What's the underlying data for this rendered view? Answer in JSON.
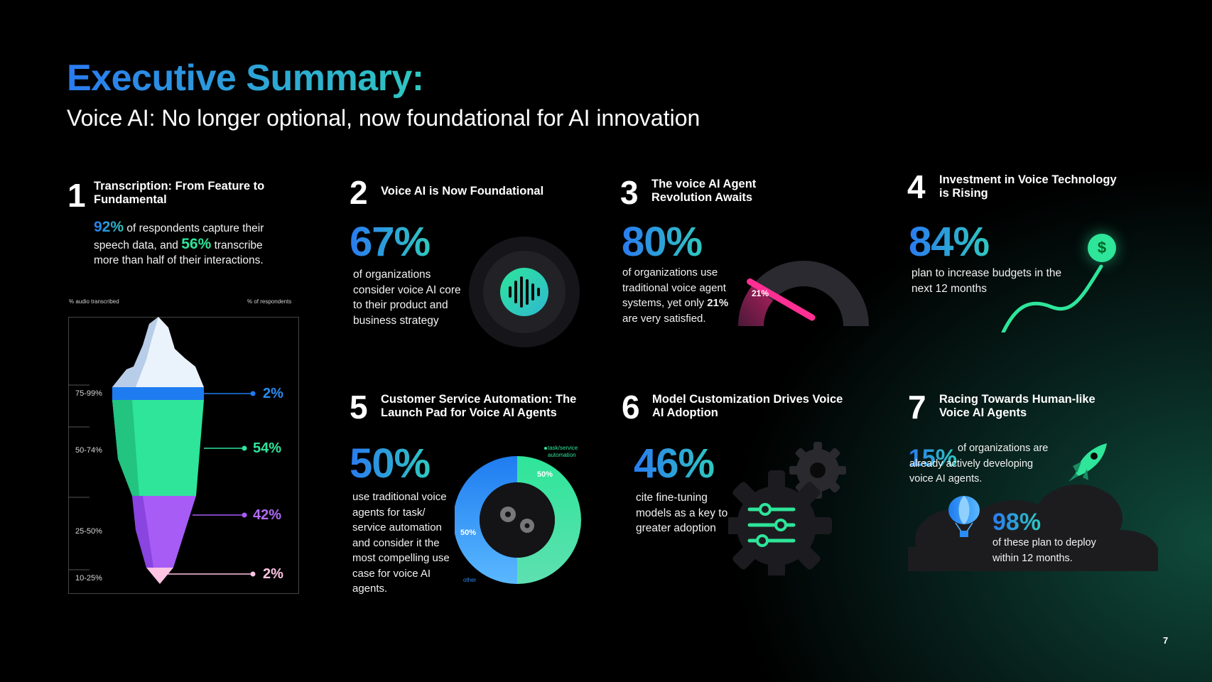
{
  "header": {
    "title": "Executive Summary:",
    "subtitle": "Voice AI: No longer optional, now foundational for AI innovation"
  },
  "colors": {
    "blue": "#2a7bf0",
    "teal": "#2fc8c0",
    "green": "#2ee59a",
    "purple": "#b06cf5",
    "pink": "#ff2f93"
  },
  "sections": [
    {
      "number": "1",
      "heading": "Transcription: From Feature to Fundamental",
      "stat1": "92%",
      "text1": "of respondents capture their speech data, and",
      "stat2": "56%",
      "text2": "transcribe more than half of their interactions."
    },
    {
      "number": "2",
      "heading": "Voice AI is Now Foundational",
      "stat": "67%",
      "text": "of organizations consider voice AI core to their product and business strategy",
      "icon": "sound-wave-icon"
    },
    {
      "number": "3",
      "heading": "The voice AI Agent Revolution Awaits",
      "stat": "80%",
      "text_before": "of organizations use traditional voice agent systems, yet only",
      "highlight": "21%",
      "text_after": "are very satisfied."
    },
    {
      "number": "4",
      "heading": "Investment in Voice Technology is Rising",
      "stat": "84%",
      "text": "plan to increase budgets in the next 12 months",
      "icon_label": "$"
    },
    {
      "number": "5",
      "heading": "Customer Service Automation: The Launch Pad for Voice AI Agents",
      "stat": "50%",
      "text": "use traditional voice agents for task/ service automation and consider it the most compelling use case for voice AI agents."
    },
    {
      "number": "6",
      "heading": "Model Customization Drives Voice AI Adoption",
      "stat": "46%",
      "text": "cite fine-tuning models as a key to greater adoption",
      "icon": "gear-sliders-icon"
    },
    {
      "number": "7",
      "heading": "Racing Towards Human-like Voice AI Agents",
      "stat1": "15%",
      "text1": "of organizations are already actively developing voice AI agents.",
      "stat2": "98%",
      "text2": "of these plan to deploy within 12 months.",
      "icons": [
        "rocket-icon",
        "balloon-icon"
      ]
    }
  ],
  "chart_data": [
    {
      "type": "bar",
      "title": "",
      "xlabel": "% audio transcribed",
      "ylabel": "% of respondents",
      "categories": [
        "75-99%",
        "50-74%",
        "25-50%",
        "10-25%"
      ],
      "values": [
        2,
        54,
        42,
        2
      ],
      "value_labels": [
        "2%",
        "54%",
        "42%",
        "2%"
      ],
      "colors": [
        "#1e7cf0",
        "#2ee59a",
        "#a65cf5",
        "#ffc4e4"
      ]
    },
    {
      "type": "pie",
      "title": "",
      "labels": [
        "task/service automation",
        "other"
      ],
      "values": [
        50,
        50
      ],
      "value_labels": [
        "50%",
        "50%"
      ],
      "colors": [
        "#2ee59a",
        "#2a8cf5"
      ]
    },
    {
      "type": "pie",
      "title": "",
      "labels": [
        "very satisfied"
      ],
      "values": [
        21
      ],
      "value_labels": [
        "21%"
      ],
      "colors": [
        "#ff2f93"
      ]
    }
  ],
  "footer": {
    "page": "7"
  }
}
